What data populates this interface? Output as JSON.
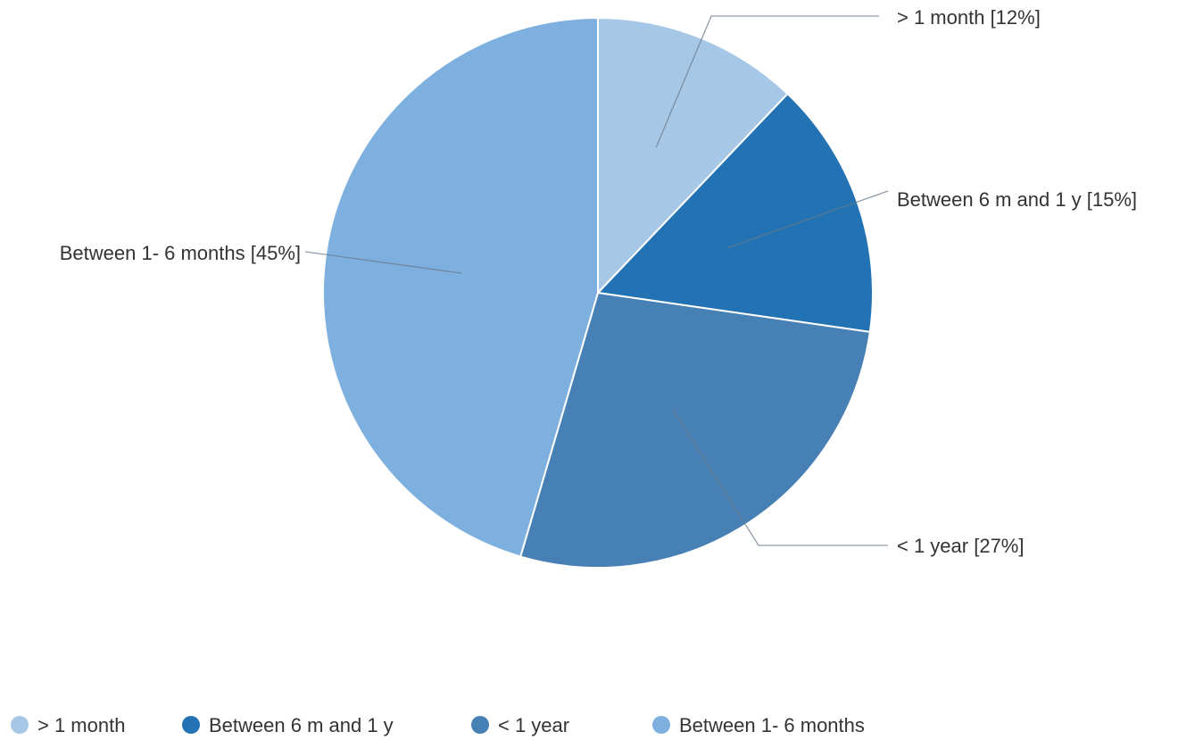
{
  "chart_data": {
    "type": "pie",
    "title": "",
    "slices": [
      {
        "name": "> 1 month",
        "value": 12,
        "label": "> 1 month [12%]",
        "color": "#a6c8e6"
      },
      {
        "name": "Between 6 m and 1 y",
        "value": 15,
        "label": "Between 6 m and 1 y [15%]",
        "color": "#2272b4"
      },
      {
        "name": "< 1 year",
        "value": 27,
        "label": "< 1 year [27%]",
        "color": "#4780b4"
      },
      {
        "name": "Between 1- 6 months",
        "value": 45,
        "label": "Between 1- 6 months [45%]",
        "color": "#7eb0df"
      }
    ],
    "legend_position": "bottom-left"
  }
}
